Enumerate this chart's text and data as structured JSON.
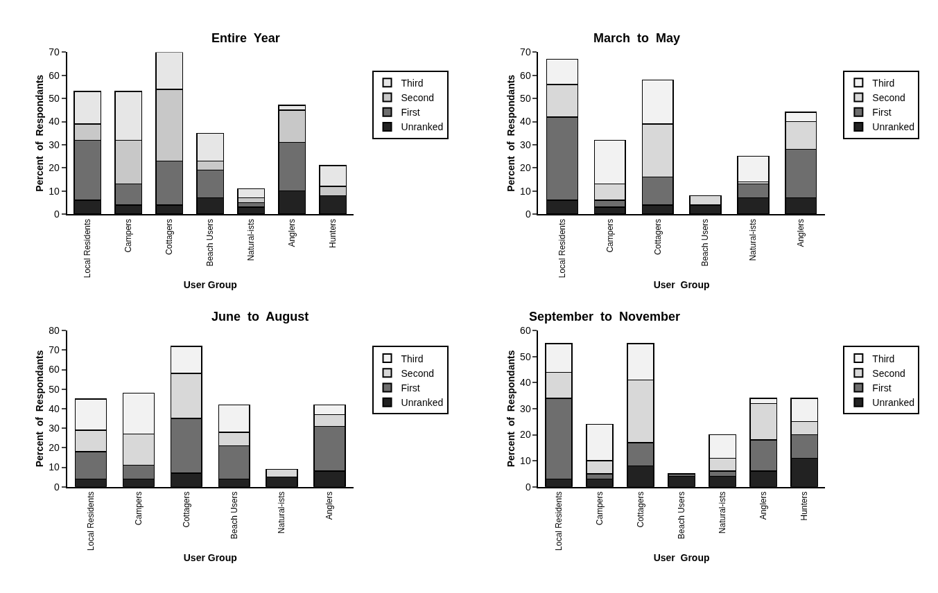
{
  "chart_data": [
    {
      "type": "bar",
      "title": "Entire  Year",
      "xlabel": "User Group",
      "ylabel": "Percent  of  Respondants",
      "stacked": true,
      "legend": "right",
      "ylim": [
        0,
        70
      ],
      "yticks": [
        0,
        10,
        20,
        30,
        40,
        50,
        60,
        70
      ],
      "categories": [
        "Local Residents",
        "Campers",
        "Cottagers",
        "Beach Users",
        "Natural-ists",
        "Anglers",
        "Hunters"
      ],
      "series": [
        {
          "name": "Unranked",
          "color": "#222222",
          "values": [
            6,
            4,
            4,
            7,
            3,
            10,
            8
          ]
        },
        {
          "name": "First",
          "color": "#6e6e6e",
          "values": [
            26,
            9,
            19,
            12,
            2,
            21,
            null
          ]
        },
        {
          "name": "Second",
          "color": "#c8c8c8",
          "values": [
            7,
            19,
            31,
            4,
            2,
            14,
            4
          ]
        },
        {
          "name": "Third",
          "color": "#e6e6e6",
          "values": [
            14,
            21,
            16,
            12,
            4,
            2,
            9
          ]
        }
      ]
    },
    {
      "type": "bar",
      "title": "March  to  May",
      "xlabel": "User  Group",
      "ylabel": "Percent  of  Respondants",
      "stacked": true,
      "legend": "right",
      "ylim": [
        0,
        70
      ],
      "yticks": [
        0,
        10,
        20,
        30,
        40,
        50,
        60,
        70
      ],
      "categories": [
        "Local Residents",
        "Campers",
        "Cottagers",
        "Beach Users",
        "Natural-ists",
        "Anglers"
      ],
      "series": [
        {
          "name": "Unranked",
          "color": "#222222",
          "values": [
            6,
            3,
            4,
            4,
            7,
            7
          ]
        },
        {
          "name": "First",
          "color": "#6e6e6e",
          "values": [
            36,
            3,
            12,
            null,
            6,
            21
          ]
        },
        {
          "name": "Second",
          "color": "#d8d8d8",
          "values": [
            14,
            7,
            23,
            4,
            1,
            12
          ]
        },
        {
          "name": "Third",
          "color": "#f2f2f2",
          "values": [
            11,
            19,
            19,
            null,
            11,
            4
          ]
        }
      ]
    },
    {
      "type": "bar",
      "title": "June  to  August",
      "xlabel": "User Group",
      "ylabel": "Percent  of  Respondants",
      "stacked": true,
      "legend": "right",
      "ylim": [
        0,
        80
      ],
      "yticks": [
        0,
        10,
        20,
        30,
        40,
        50,
        60,
        70,
        80
      ],
      "categories": [
        "Local Residents",
        "Campers",
        "Cottagers",
        "Beach Users",
        "Natural-ists",
        "Anglers"
      ],
      "series": [
        {
          "name": "Unranked",
          "color": "#222222",
          "values": [
            4,
            4,
            7,
            4,
            5,
            8
          ]
        },
        {
          "name": "First",
          "color": "#6e6e6e",
          "values": [
            14,
            7,
            28,
            17,
            null,
            23
          ]
        },
        {
          "name": "Second",
          "color": "#d8d8d8",
          "values": [
            11,
            16,
            23,
            7,
            4,
            6
          ]
        },
        {
          "name": "Third",
          "color": "#f2f2f2",
          "values": [
            16,
            21,
            14,
            14,
            null,
            5
          ]
        }
      ]
    },
    {
      "type": "bar",
      "title": "September  to  November",
      "xlabel": "User  Group",
      "ylabel": "Percent  of  Respondants",
      "stacked": true,
      "legend": "right",
      "ylim": [
        0,
        60
      ],
      "yticks": [
        0,
        10,
        20,
        30,
        40,
        50,
        60
      ],
      "categories": [
        "Local Residents",
        "Campers",
        "Cottagers",
        "Beach Users",
        "Natural-ists",
        "Anglers",
        "Hunters"
      ],
      "series": [
        {
          "name": "Unranked",
          "color": "#222222",
          "values": [
            3,
            3,
            8,
            4,
            4,
            6,
            11
          ]
        },
        {
          "name": "First",
          "color": "#6e6e6e",
          "values": [
            31,
            2,
            9,
            1,
            2,
            12,
            9
          ]
        },
        {
          "name": "Second",
          "color": "#d8d8d8",
          "values": [
            10,
            5,
            24,
            null,
            5,
            14,
            5
          ]
        },
        {
          "name": "Third",
          "color": "#f2f2f2",
          "values": [
            11,
            14,
            14,
            null,
            9,
            2,
            9
          ]
        }
      ]
    }
  ]
}
